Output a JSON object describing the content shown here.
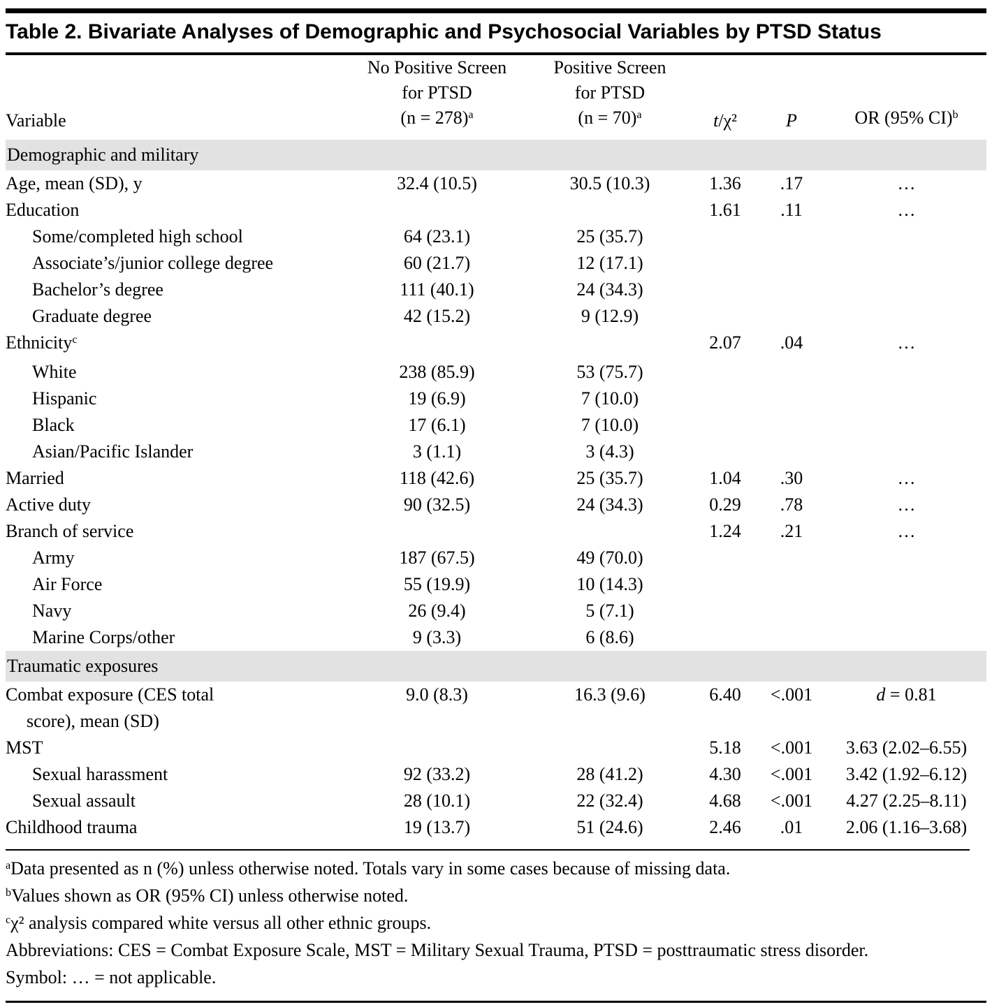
{
  "title": "Table 2. Bivariate Analyses of Demographic and Psychosocial Variables by PTSD Status",
  "colors": {
    "section_band": "#e2e2e2",
    "rule": "#000000",
    "text": "#000000",
    "background": "#ffffff"
  },
  "table": {
    "headers": {
      "variable": "Variable",
      "no_screen": {
        "line1": "No Positive Screen",
        "line2": "for PTSD",
        "line3": "(n = 278)",
        "sup": "a"
      },
      "pos_screen": {
        "line1": "Positive Screen",
        "line2": "for PTSD",
        "line3": "(n = 70)",
        "sup": "a"
      },
      "stat": {
        "t": "t",
        "rest": "/χ²"
      },
      "p": "P",
      "or": {
        "text": "OR (95% CI)",
        "sup": "b"
      }
    },
    "rows": [
      {
        "type": "section",
        "label": "Demographic and military"
      },
      {
        "type": "data",
        "label": "Age, mean (SD), y",
        "indent": 0,
        "no_screen": "32.4 (10.5)",
        "pos_screen": "30.5 (10.3)",
        "t": "1.36",
        "p": ".17",
        "or": "…"
      },
      {
        "type": "data",
        "label": "Education",
        "indent": 0,
        "no_screen": "",
        "pos_screen": "",
        "t": "1.61",
        "p": ".11",
        "or": "…"
      },
      {
        "type": "data",
        "label": "Some/completed high school",
        "indent": 1,
        "no_screen": "64 (23.1)",
        "pos_screen": "25 (35.7)",
        "t": "",
        "p": "",
        "or": ""
      },
      {
        "type": "data",
        "label": "Associate’s/junior college degree",
        "indent": 1,
        "no_screen": "60 (21.7)",
        "pos_screen": "12 (17.1)",
        "t": "",
        "p": "",
        "or": ""
      },
      {
        "type": "data",
        "label": "Bachelor’s degree",
        "indent": 1,
        "no_screen": "111 (40.1)",
        "pos_screen": "24 (34.3)",
        "t": "",
        "p": "",
        "or": ""
      },
      {
        "type": "data",
        "label": "Graduate degree",
        "indent": 1,
        "no_screen": "42 (15.2)",
        "pos_screen": "9 (12.9)",
        "t": "",
        "p": "",
        "or": ""
      },
      {
        "type": "data",
        "label": "Ethnicity",
        "sup": "c",
        "indent": 0,
        "no_screen": "",
        "pos_screen": "",
        "t": "2.07",
        "p": ".04",
        "or": "…"
      },
      {
        "type": "data",
        "label": "White",
        "indent": 1,
        "no_screen": "238 (85.9)",
        "pos_screen": "53 (75.7)",
        "t": "",
        "p": "",
        "or": ""
      },
      {
        "type": "data",
        "label": "Hispanic",
        "indent": 1,
        "no_screen": "19 (6.9)",
        "pos_screen": "7 (10.0)",
        "t": "",
        "p": "",
        "or": ""
      },
      {
        "type": "data",
        "label": "Black",
        "indent": 1,
        "no_screen": "17 (6.1)",
        "pos_screen": "7 (10.0)",
        "t": "",
        "p": "",
        "or": ""
      },
      {
        "type": "data",
        "label": "Asian/Pacific Islander",
        "indent": 1,
        "no_screen": "3 (1.1)",
        "pos_screen": "3 (4.3)",
        "t": "",
        "p": "",
        "or": ""
      },
      {
        "type": "data",
        "label": "Married",
        "indent": 0,
        "no_screen": "118 (42.6)",
        "pos_screen": "25 (35.7)",
        "t": "1.04",
        "p": ".30",
        "or": "…"
      },
      {
        "type": "data",
        "label": "Active duty",
        "indent": 0,
        "no_screen": "90 (32.5)",
        "pos_screen": "24 (34.3)",
        "t": "0.29",
        "p": ".78",
        "or": "…"
      },
      {
        "type": "data",
        "label": "Branch of service",
        "indent": 0,
        "no_screen": "",
        "pos_screen": "",
        "t": "1.24",
        "p": ".21",
        "or": "…"
      },
      {
        "type": "data",
        "label": "Army",
        "indent": 1,
        "no_screen": "187 (67.5)",
        "pos_screen": "49 (70.0)",
        "t": "",
        "p": "",
        "or": ""
      },
      {
        "type": "data",
        "label": "Air Force",
        "indent": 1,
        "no_screen": "55 (19.9)",
        "pos_screen": "10 (14.3)",
        "t": "",
        "p": "",
        "or": ""
      },
      {
        "type": "data",
        "label": "Navy",
        "indent": 1,
        "no_screen": "26 (9.4)",
        "pos_screen": "5 (7.1)",
        "t": "",
        "p": "",
        "or": ""
      },
      {
        "type": "data",
        "label": "Marine Corps/other",
        "indent": 1,
        "no_screen": "9 (3.3)",
        "pos_screen": "6 (8.6)",
        "t": "",
        "p": "",
        "or": ""
      },
      {
        "type": "section",
        "label": "Traumatic exposures"
      },
      {
        "type": "data",
        "label": "Combat exposure (CES total",
        "label2": "score), mean (SD)",
        "indent": 0,
        "no_screen": "9.0 (8.3)",
        "pos_screen": "16.3 (9.6)",
        "t": "6.40",
        "p": "<.001",
        "or": {
          "it": "d",
          "text": " = 0.81"
        }
      },
      {
        "type": "data",
        "label": "MST",
        "indent": 0,
        "no_screen": "",
        "pos_screen": "",
        "t": "5.18",
        "p": "<.001",
        "or": "3.63 (2.02–6.55)"
      },
      {
        "type": "data",
        "label": "Sexual harassment",
        "indent": 1,
        "no_screen": "92 (33.2)",
        "pos_screen": "28 (41.2)",
        "t": "4.30",
        "p": "<.001",
        "or": "3.42 (1.92–6.12)"
      },
      {
        "type": "data",
        "label": "Sexual assault",
        "indent": 1,
        "no_screen": "28 (10.1)",
        "pos_screen": "22 (32.4)",
        "t": "4.68",
        "p": "<.001",
        "or": "4.27 (2.25–8.11)"
      },
      {
        "type": "data",
        "label": "Childhood trauma",
        "indent": 0,
        "no_screen": "19 (13.7)",
        "pos_screen": "51 (24.6)",
        "t": "2.46",
        "p": ".01",
        "or": "2.06 (1.16–3.68)"
      }
    ]
  },
  "footnotes": [
    {
      "sup": "a",
      "text": "Data presented as n (%) unless otherwise noted. Totals vary in some cases because of missing data."
    },
    {
      "sup": "b",
      "text": "Values shown as OR (95% CI) unless otherwise noted."
    },
    {
      "sup": "c",
      "text": "χ² analysis compared white versus all other ethnic groups."
    },
    {
      "sup": "",
      "text": "Abbreviations: CES = Combat Exposure Scale, MST = Military Sexual Trauma, PTSD = posttraumatic stress disorder."
    },
    {
      "sup": "",
      "text": "Symbol: … = not applicable."
    }
  ]
}
